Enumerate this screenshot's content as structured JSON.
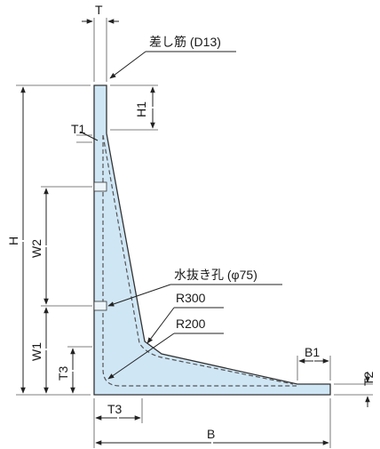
{
  "colors": {
    "wall_fill": "#cfe6f5",
    "outline": "#333333",
    "rebar_dash": "#555555"
  },
  "labels": {
    "T": "T",
    "rebar": "差し筋 (D13)",
    "H1": "H1",
    "T1": "T1",
    "H": "H",
    "W2": "W2",
    "drain_hole": "水抜き孔 (φ75)",
    "R300": "R300",
    "R200": "R200",
    "W1": "W1",
    "T3_vertical": "T3",
    "B1": "B1",
    "T2": "T2",
    "T3_horizontal": "T3",
    "B": "B"
  }
}
